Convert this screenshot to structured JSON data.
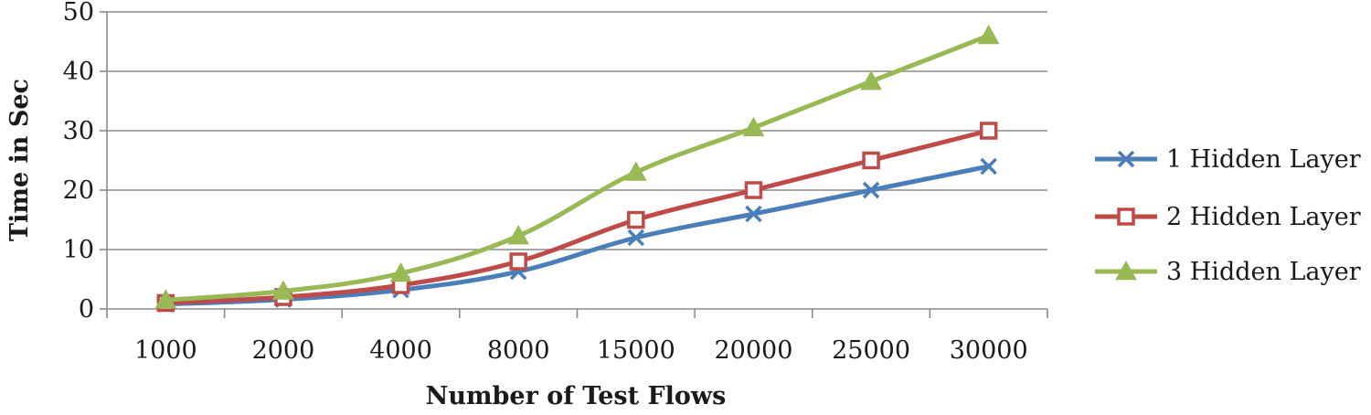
{
  "chart_data": {
    "type": "line",
    "title": "",
    "xlabel": "Number of Test Flows",
    "ylabel": "Time in Sec",
    "ylim": [
      0,
      50
    ],
    "yticks": [
      0,
      10,
      20,
      30,
      40,
      50
    ],
    "grid": true,
    "legend_position": "right",
    "categories": [
      "1000",
      "2000",
      "4000",
      "8000",
      "15000",
      "20000",
      "25000",
      "30000"
    ],
    "series": [
      {
        "name": "1 Hidden Layer",
        "color": "#4a7ebb",
        "marker": "x",
        "values": [
          0.8,
          1.6,
          3.2,
          6.3,
          12,
          16,
          20,
          24
        ]
      },
      {
        "name": "2 Hidden Layer",
        "color": "#be4b48",
        "marker": "square",
        "values": [
          1.0,
          2.0,
          4.0,
          8.0,
          15,
          20,
          25,
          30
        ]
      },
      {
        "name": "3 Hidden Layer",
        "color": "#98b954",
        "marker": "triangle",
        "values": [
          1.5,
          3.0,
          6.0,
          12.3,
          23,
          30.5,
          38.3,
          46
        ]
      }
    ]
  }
}
